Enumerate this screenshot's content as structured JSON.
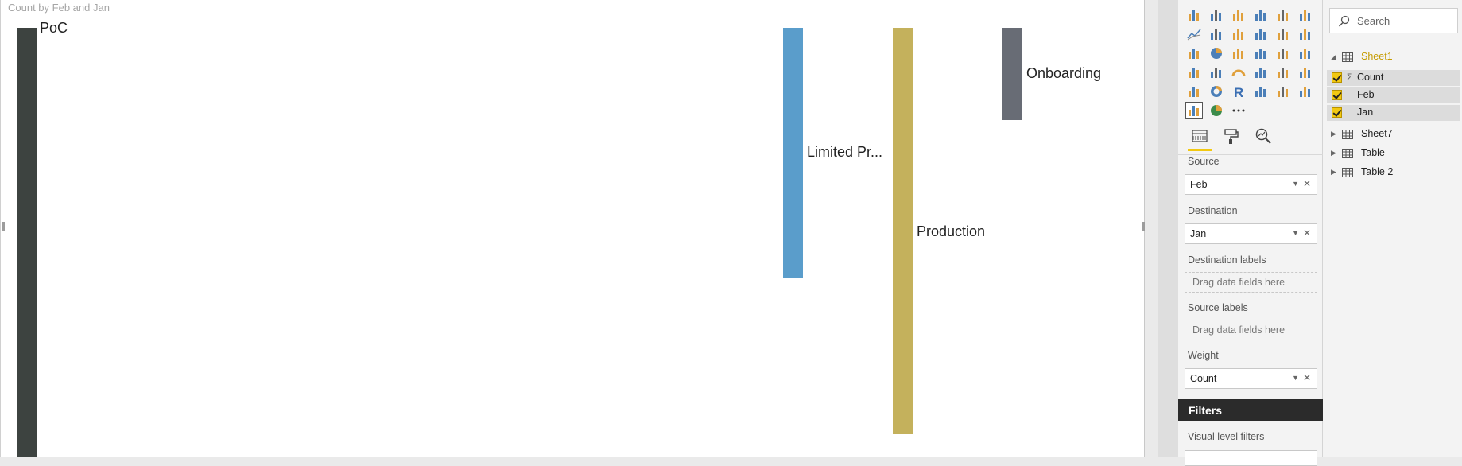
{
  "visual": {
    "title": "Count by Feb and Jan",
    "nodes": [
      {
        "label": "PoC",
        "color": "#3d4340"
      },
      {
        "label": "Limited Pr...",
        "color": "#5a9dcb"
      },
      {
        "label": "Production",
        "color": "#c4b15c"
      },
      {
        "label": "Onboarding",
        "color": "#686c75"
      }
    ]
  },
  "visualizations": {
    "icon_names": [
      "stacked-bar-icon",
      "stacked-column-icon",
      "clustered-bar-icon",
      "clustered-column-icon",
      "100-bar-icon",
      "100-column-icon",
      "line-chart-icon",
      "area-chart-icon",
      "stacked-area-icon",
      "line-column-icon",
      "line-clustered-icon",
      "ribbon-chart-icon",
      "scatter-icon",
      "pie-icon",
      "treemap-icon",
      "map-icon",
      "table-icon",
      "matrix-icon",
      "filled-map-icon",
      "funnel-icon",
      "gauge-icon",
      "multi-row-card-icon",
      "card-icon",
      "kpi-icon",
      "slicer-icon",
      "donut-icon",
      "r-visual-icon",
      "shape-map-icon",
      "grid-icon",
      "grid-alt-icon",
      "sankey-icon",
      "globe-icon",
      "more-icon"
    ],
    "tabs": [
      "fields-tab",
      "format-tab",
      "analytics-tab"
    ]
  },
  "wells": {
    "source_label": "Source",
    "source_value": "Feb",
    "destination_label": "Destination",
    "destination_value": "Jan",
    "dest_labels_label": "Destination labels",
    "dest_labels_placeholder": "Drag data fields here",
    "source_labels_label": "Source labels",
    "source_labels_placeholder": "Drag data fields here",
    "weight_label": "Weight",
    "weight_value": "Count"
  },
  "filters": {
    "header": "Filters",
    "visual_level": "Visual level filters"
  },
  "fields": {
    "search_placeholder": "Search",
    "tables": [
      {
        "name": "Sheet1",
        "expanded": true,
        "fields": [
          "Count",
          "Feb",
          "Jan"
        ]
      },
      {
        "name": "Sheet7"
      },
      {
        "name": "Table"
      },
      {
        "name": "Table 2"
      }
    ]
  },
  "colors": {
    "accent": "#f2c811",
    "filters_bg": "#2b2b2b"
  }
}
